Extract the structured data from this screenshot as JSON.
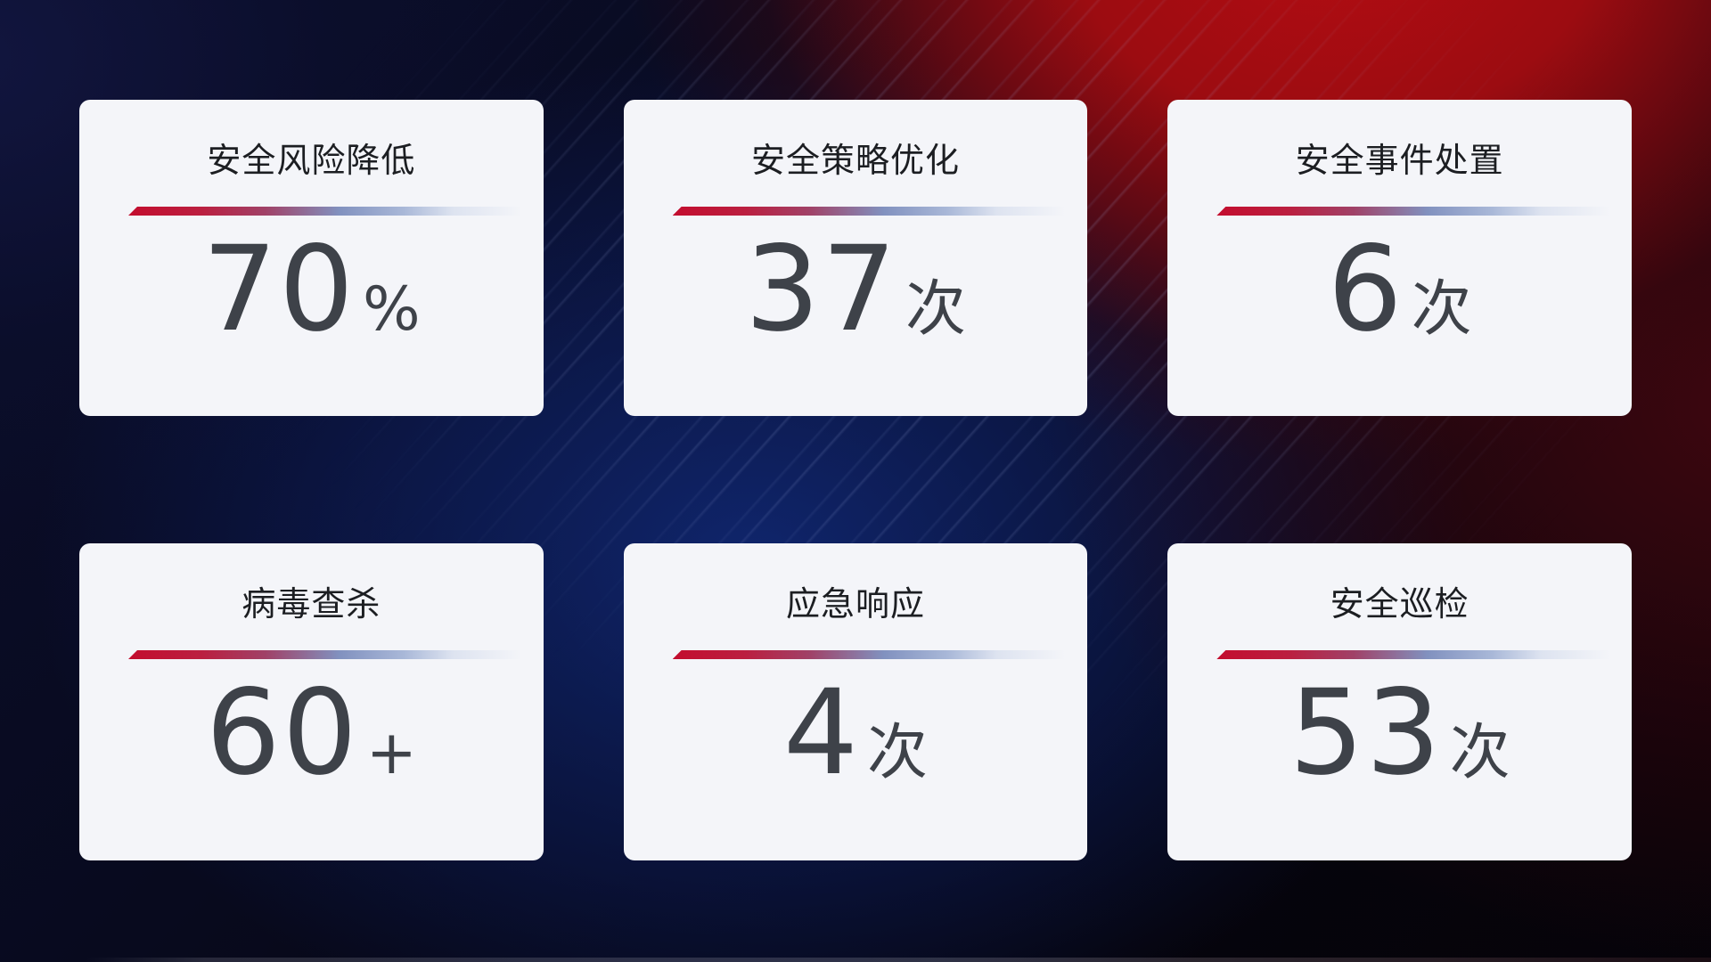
{
  "colors": {
    "card_bg": "#f4f5f9",
    "title_color": "#1c1e22",
    "value_color": "#3e4249",
    "divider_start": "#c30d2e",
    "divider_mid": "#8191bf",
    "divider_end": "#dde3f0",
    "bg_navy": "#0b0e2c",
    "bg_blue_glow": "#112a7a",
    "bg_red": "#b50d12"
  },
  "cards": [
    {
      "title": "安全风险降低",
      "value": "70",
      "unit": "%"
    },
    {
      "title": "安全策略优化",
      "value": "37",
      "unit": "次"
    },
    {
      "title": "安全事件处置",
      "value": "6",
      "unit": "次"
    },
    {
      "title": "病毒查杀",
      "value": "60",
      "unit": "+"
    },
    {
      "title": "应急响应",
      "value": "4",
      "unit": "次"
    },
    {
      "title": "安全巡检",
      "value": "53",
      "unit": "次"
    }
  ]
}
